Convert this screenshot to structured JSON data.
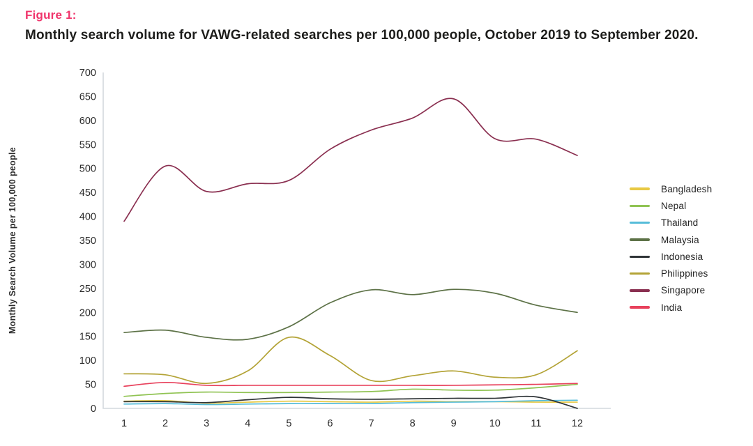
{
  "figure": {
    "label": "Figure 1:",
    "title": "Monthly search volume for VAWG-related searches per 100,000 people, October 2019 to September 2020."
  },
  "colors": {
    "accent_pink": "#f0346b",
    "axis_line": "#d4d9dd",
    "tick_text": "#2a2a2a"
  },
  "chart_data": {
    "type": "line",
    "title": "Monthly search volume for VAWG-related searches per 100,000 people, October 2019 to September 2020.",
    "xlabel": "",
    "ylabel": "Monthly Search Volume per 100,000 people",
    "x": [
      1,
      2,
      3,
      4,
      5,
      6,
      7,
      8,
      9,
      10,
      11,
      12
    ],
    "ylim": [
      0,
      700
    ],
    "ytick_step": 50,
    "grid": false,
    "legend_position": "right",
    "series": [
      {
        "name": "Bangladesh",
        "color": "#e8c944",
        "values": [
          15,
          16,
          11,
          13,
          15,
          14,
          13,
          15,
          14,
          14,
          13,
          13
        ]
      },
      {
        "name": "Nepal",
        "color": "#90c353",
        "values": [
          25,
          31,
          34,
          33,
          33,
          34,
          35,
          40,
          38,
          38,
          43,
          50
        ]
      },
      {
        "name": "Thailand",
        "color": "#55bcd9",
        "values": [
          9,
          10,
          8,
          9,
          10,
          10,
          10,
          12,
          13,
          14,
          16,
          17
        ]
      },
      {
        "name": "Malaysia",
        "color": "#5d7247",
        "values": [
          158,
          163,
          148,
          144,
          170,
          220,
          247,
          237,
          248,
          240,
          215,
          200
        ]
      },
      {
        "name": "Indonesia",
        "color": "#2f3437",
        "values": [
          14,
          14,
          12,
          18,
          23,
          20,
          19,
          20,
          21,
          21,
          24,
          0
        ]
      },
      {
        "name": "Philippines",
        "color": "#b3a336",
        "values": [
          72,
          70,
          52,
          78,
          148,
          110,
          58,
          68,
          78,
          65,
          70,
          120
        ]
      },
      {
        "name": "Singapore",
        "color": "#8a2f50",
        "values": [
          390,
          505,
          452,
          468,
          475,
          540,
          580,
          605,
          645,
          562,
          561,
          527
        ]
      },
      {
        "name": "India",
        "color": "#e8415c",
        "values": [
          46,
          54,
          48,
          48,
          48,
          48,
          48,
          48,
          48,
          49,
          50,
          52
        ]
      }
    ]
  }
}
